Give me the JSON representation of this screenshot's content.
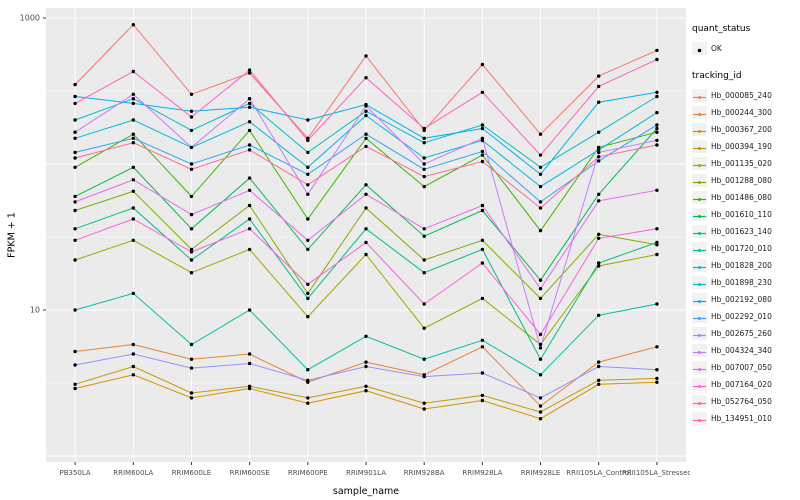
{
  "chart_data": {
    "type": "line",
    "title": "",
    "xlabel": "sample_name",
    "ylabel": "FPKM + 1",
    "y_scale": "log10",
    "y_ticks": [
      1000,
      10
    ],
    "ylim": [
      1,
      1200
    ],
    "grid_major": [
      1,
      10,
      100,
      1000
    ],
    "grid_minor": [
      3.162,
      31.62,
      316.2
    ],
    "panel_bg": "#EBEBEB",
    "grid_color": "#FFFFFF",
    "point_color": "#000000",
    "tick_text_color": "#4D4D4D",
    "categories": [
      "PB350LA",
      "RRIM600LA",
      "RRIM600LE",
      "RRIM600SE",
      "RRIM600PE",
      "RRIM901LA",
      "RRIM928BA",
      "RRIM928LA",
      "RRIM928LE",
      "RRII105LA_Control",
      "RRII105LA_Stressed"
    ],
    "series": [
      {
        "name": "Hb_000085_240",
        "color": "#F8766D",
        "values": [
          350,
          900,
          300,
          420,
          150,
          550,
          170,
          480,
          160,
          400,
          600
        ]
      },
      {
        "name": "Hb_000244_300",
        "color": "#EA8331",
        "values": [
          5.2,
          5.8,
          4.6,
          5.0,
          3.2,
          4.4,
          3.6,
          5.6,
          2.2,
          4.4,
          5.6
        ]
      },
      {
        "name": "Hb_000367_200",
        "color": "#D89000",
        "values": [
          2.9,
          3.6,
          2.5,
          2.9,
          2.3,
          2.8,
          2.1,
          2.4,
          1.8,
          3.1,
          3.2
        ]
      },
      {
        "name": "Hb_000394_190",
        "color": "#C09B00",
        "values": [
          3.1,
          4.1,
          2.7,
          3.0,
          2.5,
          3.0,
          2.3,
          2.6,
          2.0,
          3.3,
          3.4
        ]
      },
      {
        "name": "Hb_001135_020",
        "color": "#A3A500",
        "values": [
          22,
          30,
          18,
          26,
          9,
          24,
          7.5,
          12,
          5.8,
          20,
          24
        ]
      },
      {
        "name": "Hb_001288_080",
        "color": "#7CAE00",
        "values": [
          48,
          65,
          26,
          52,
          13,
          50,
          22,
          30,
          12,
          33,
          28
        ]
      },
      {
        "name": "Hb_001486_080",
        "color": "#39B600",
        "values": [
          95,
          160,
          60,
          170,
          42,
          150,
          70,
          115,
          35,
          130,
          165
        ]
      },
      {
        "name": "Hb_001610_110",
        "color": "#00BB4E",
        "values": [
          60,
          95,
          36,
          80,
          26,
          72,
          32,
          48,
          16,
          62,
          175
        ]
      },
      {
        "name": "Hb_001623_140",
        "color": "#00BF7D",
        "values": [
          36,
          50,
          22,
          42,
          12,
          36,
          18,
          26,
          4.6,
          21,
          29
        ]
      },
      {
        "name": "Hb_001720_010",
        "color": "#00C1A3",
        "values": [
          10,
          13,
          5.8,
          10,
          3.9,
          6.6,
          4.6,
          6.2,
          3.6,
          9.2,
          11
        ]
      },
      {
        "name": "Hb_001828_200",
        "color": "#00BFC4",
        "values": [
          200,
          280,
          170,
          260,
          120,
          230,
          140,
          185,
          95,
          165,
          290
        ]
      },
      {
        "name": "Hb_001898_230",
        "color": "#00BAE0",
        "values": [
          150,
          200,
          130,
          195,
          95,
          215,
          110,
          145,
          70,
          125,
          225
        ]
      },
      {
        "name": "Hb_002192_080",
        "color": "#00B0F6",
        "values": [
          290,
          260,
          230,
          245,
          200,
          255,
          150,
          175,
          85,
          265,
          310
        ]
      },
      {
        "name": "Hb_002292_010",
        "color": "#35A2FF",
        "values": [
          120,
          150,
          100,
          135,
          85,
          160,
          92,
          122,
          55,
          105,
          185
        ]
      },
      {
        "name": "Hb_002675_260",
        "color": "#9590FF",
        "values": [
          4.2,
          5.0,
          4.0,
          4.3,
          3.3,
          4.1,
          3.5,
          3.7,
          2.5,
          4.1,
          3.9
        ]
      },
      {
        "name": "Hb_004324_340",
        "color": "#C77CFF",
        "values": [
          165,
          300,
          130,
          280,
          62,
          250,
          100,
          150,
          5.5,
          120,
          145
        ]
      },
      {
        "name": "Hb_007007_050",
        "color": "#E76BF3",
        "values": [
          55,
          78,
          45,
          66,
          30,
          62,
          36,
          52,
          14,
          56,
          66
        ]
      },
      {
        "name": "Hb_007164_020",
        "color": "#FA62DB",
        "values": [
          30,
          42,
          25,
          36,
          15,
          29,
          11,
          21,
          6.8,
          31,
          36
        ]
      },
      {
        "name": "Hb_052764_050",
        "color": "#FF62BC",
        "values": [
          260,
          430,
          210,
          440,
          145,
          390,
          175,
          310,
          115,
          340,
          520
        ]
      },
      {
        "name": "Hb_134951_010",
        "color": "#FF6A98",
        "values": [
          110,
          140,
          92,
          125,
          72,
          132,
          82,
          104,
          50,
          112,
          135
        ]
      }
    ]
  },
  "legend": {
    "quant_status_title": "quant_status",
    "quant_status_items": [
      {
        "label": "OK"
      }
    ],
    "tracking_title": "tracking_id"
  }
}
